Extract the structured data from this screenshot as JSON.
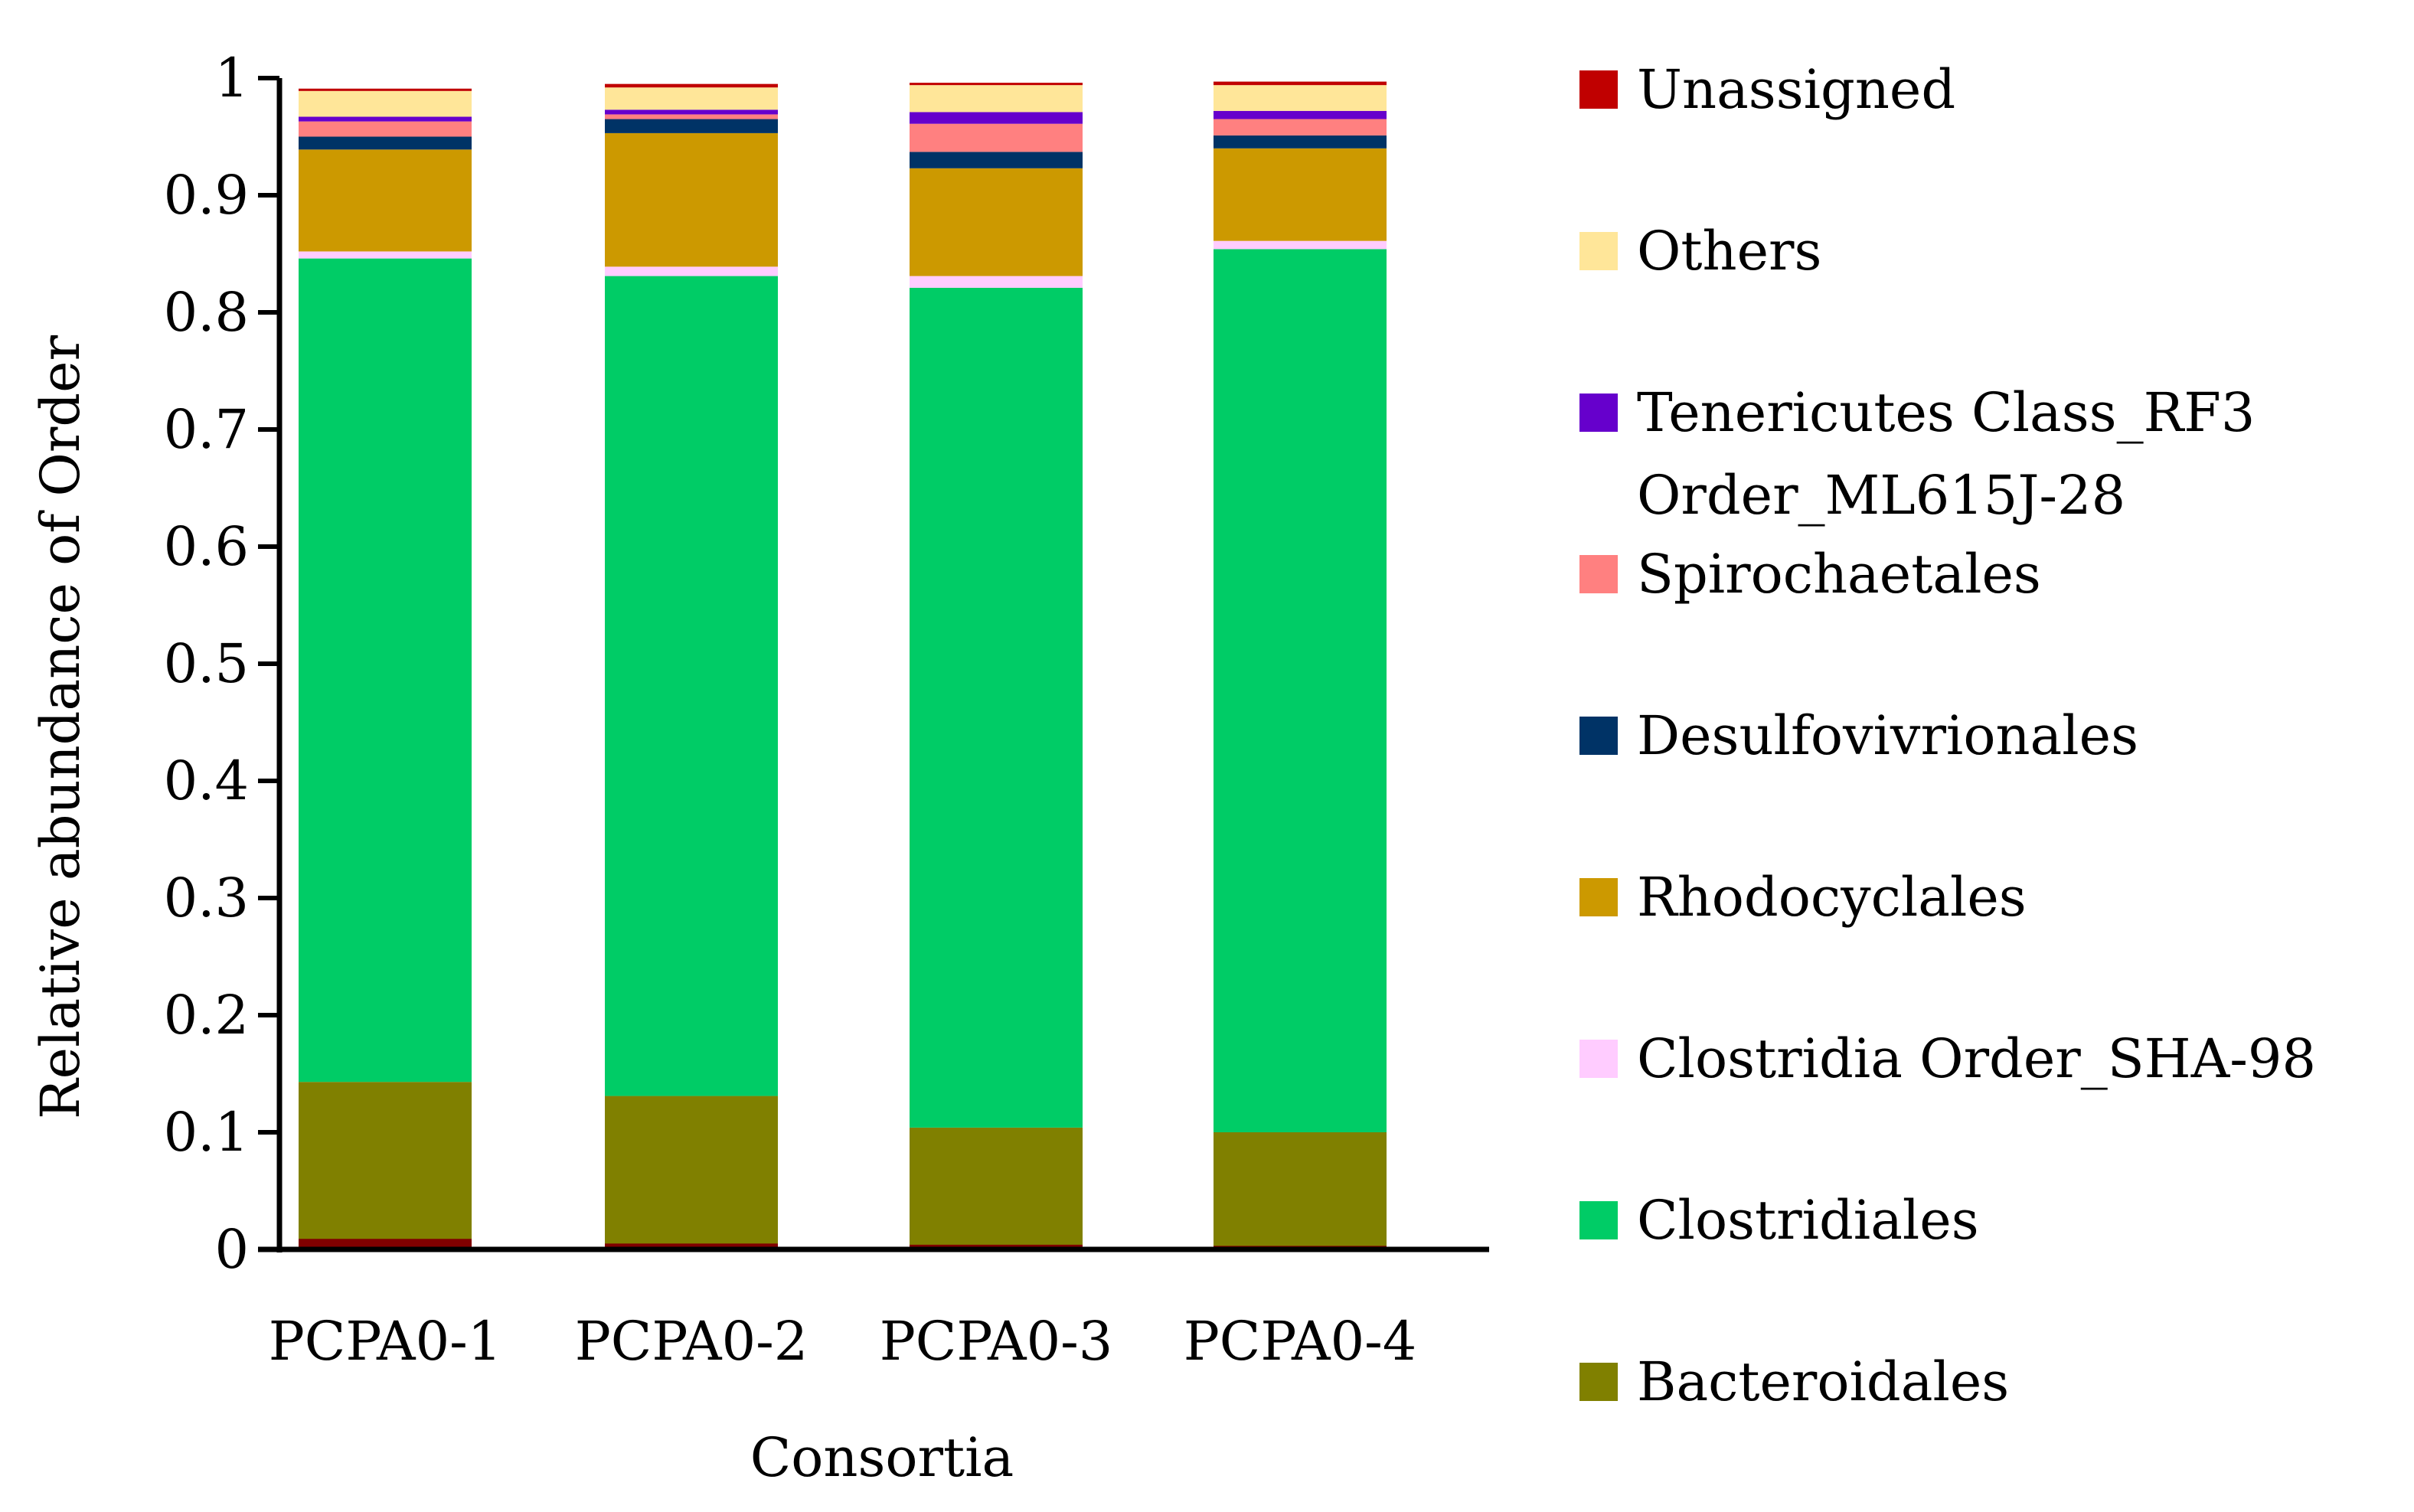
{
  "chart_data": {
    "type": "bar",
    "stacked": true,
    "title": "",
    "xlabel": "Consortia",
    "ylabel": "Relative abundance of Order",
    "ylim": [
      0,
      1
    ],
    "yticks": [
      0,
      0.1,
      0.2,
      0.3,
      0.4,
      0.5,
      0.6,
      0.7,
      0.8,
      0.9,
      1
    ],
    "ytick_labels": [
      "0",
      "0.1",
      "0.2",
      "0.3",
      "0.4",
      "0.5",
      "0.6",
      "0.7",
      "0.8",
      "0.9",
      "1"
    ],
    "categories": [
      "PCPA0-1",
      "PCPA0-2",
      "PCPA0-3",
      "PCPA0-4"
    ],
    "legend_position": "right",
    "series": [
      {
        "name": "Bacteroidales",
        "color": "#808000",
        "values": [
          0.143,
          0.131,
          0.104,
          0.1
        ]
      },
      {
        "name": "Clostridiales",
        "color": "#00CC66",
        "values": [
          0.703,
          0.7,
          0.717,
          0.754
        ]
      },
      {
        "name": "Clostridia Order_SHA-98",
        "color": "#FFCCFF",
        "values": [
          0.006,
          0.008,
          0.01,
          0.007
        ]
      },
      {
        "name": "Rhodocyclales",
        "color": "#CC9900",
        "values": [
          0.087,
          0.114,
          0.092,
          0.079
        ]
      },
      {
        "name": "Desulfovivrionales",
        "color": "#003366",
        "values": [
          0.011,
          0.012,
          0.014,
          0.011
        ]
      },
      {
        "name": "Spirochaetales",
        "color": "#FF8080",
        "values": [
          0.013,
          0.004,
          0.024,
          0.014
        ]
      },
      {
        "name": "Tenericutes Class_RF3 Order_ML615J-28",
        "name_lines": [
          "Tenericutes Class_RF3",
          "Order_ML615J-28"
        ],
        "color": "#6600CC",
        "values": [
          0.004,
          0.004,
          0.01,
          0.007
        ]
      },
      {
        "name": "Others",
        "color": "#FFE699",
        "values": [
          0.022,
          0.019,
          0.023,
          0.022
        ]
      },
      {
        "name": "Unassigned",
        "color": "#C00000",
        "values": [
          0.002,
          0.003,
          0.002,
          0.003
        ]
      }
    ],
    "bottom_strip": {
      "color": "#800000",
      "values": [
        0.009,
        0.005,
        0.004,
        0.003
      ]
    }
  }
}
